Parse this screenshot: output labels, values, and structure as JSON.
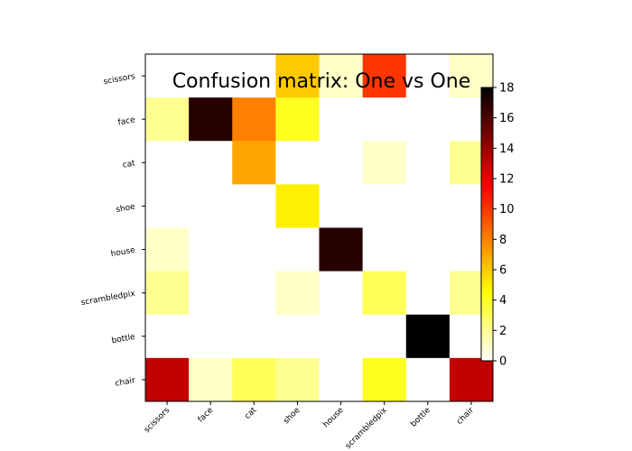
{
  "chart_data": {
    "type": "heatmap",
    "title": "Confusion matrix: One vs One",
    "xlabel": "",
    "ylabel": "",
    "row_labels": [
      "scissors",
      "face",
      "cat",
      "shoe",
      "house",
      "scrambledpix",
      "bottle",
      "chair"
    ],
    "col_labels": [
      "scissors",
      "face",
      "cat",
      "shoe",
      "house",
      "scrambledpix",
      "bottle",
      "chair"
    ],
    "values": [
      [
        0,
        0,
        0,
        6,
        1,
        10,
        0,
        1
      ],
      [
        2,
        17,
        8,
        4,
        0,
        0,
        0,
        0
      ],
      [
        0,
        0,
        7,
        0,
        0,
        1,
        0,
        2
      ],
      [
        0,
        0,
        0,
        5,
        0,
        0,
        0,
        0
      ],
      [
        1,
        0,
        0,
        0,
        17,
        0,
        0,
        0
      ],
      [
        2,
        0,
        0,
        1,
        0,
        3,
        0,
        2
      ],
      [
        0,
        0,
        0,
        0,
        0,
        0,
        18,
        0
      ],
      [
        13,
        1,
        3,
        2,
        0,
        4,
        0,
        13
      ]
    ],
    "colormap": "hot_r",
    "colorbar": {
      "min": 0,
      "max": 18,
      "ticks": [
        0,
        2,
        4,
        6,
        8,
        10,
        12,
        14,
        16,
        18
      ]
    }
  }
}
